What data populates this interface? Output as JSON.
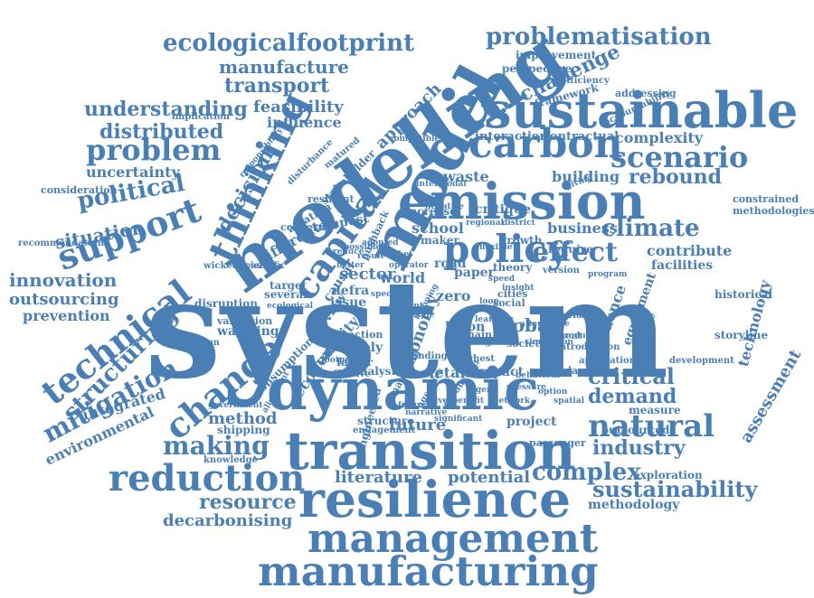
{
  "color": "#4a7fb5",
  "words": [
    "system",
    "energy",
    "modelling",
    "model",
    "sustainable",
    "emission",
    "dynamic",
    "transition",
    "resilience",
    "management",
    "manufacturing",
    "thinking",
    "capital",
    "carbon",
    "policy",
    "scenario",
    "technical",
    "support",
    "reduction",
    "change",
    "mitigation",
    "structuring",
    "problem",
    "political",
    "making",
    "natural",
    "demand",
    "critical",
    "industry",
    "complex",
    "sustainability",
    "climate",
    "effect",
    "rebound",
    "complexity",
    "challenge",
    "problematisation",
    "ecologicalfootprint",
    "manufacture",
    "transport",
    "understanding",
    "distributed",
    "feasibility",
    "influence",
    "approach",
    "decision",
    "innovation",
    "outsourcing",
    "prevention",
    "situation",
    "uncertainty",
    "resource",
    "decarbonising",
    "literature",
    "potential",
    "methodology",
    "technology",
    "assessment",
    "integrated",
    "environmental",
    "method",
    "future",
    "global",
    "sector",
    "building",
    "waste",
    "business",
    "contribute",
    "facilities",
    "framework",
    "perspective",
    "improvement",
    "consideration",
    "recommendation",
    "historical",
    "storyline",
    "constrained",
    "methodologies",
    "addressing",
    "implication",
    "different",
    "school",
    "critique",
    "interaction",
    "contractual",
    "stakeholder",
    "aviation",
    "tempest",
    "world",
    "road",
    "zero",
    "holon",
    "paper",
    "theory",
    "cities",
    "social",
    "society",
    "economy",
    "review",
    "validity",
    "supply",
    "factor",
    "analysis",
    "societal",
    "impact",
    "standard",
    "project",
    "passenger",
    "outsourced",
    "exploration",
    "measure",
    "structure",
    "engagement",
    "knowledge",
    "shipping",
    "government",
    "consumption",
    "warming",
    "validation",
    "disruption",
    "assumption",
    "target",
    "several",
    "scientific",
    "wickedness",
    "engineered",
    "economic",
    "causal",
    "defra",
    "issue",
    "evidence",
    "equipment",
    "availability",
    "development",
    "application",
    "require",
    "growth",
    "increase",
    "maker",
    "concern",
    "resilient",
    "disturbance",
    "efficiency",
    "introduction",
    "accountability",
    "responsibility",
    "compatible",
    "intermodal",
    "matured",
    "version",
    "material",
    "element",
    "chain",
    "range",
    "finding",
    "highest",
    "imagining",
    "agencies",
    "production",
    "significant",
    "narrative",
    "behaviour",
    "ecological",
    "introduction",
    "alignment",
    "footprint",
    "action",
    "effective",
    "program",
    "giving",
    "insight",
    "loop",
    "negative",
    "current",
    "mapping",
    "better",
    "district",
    "speed",
    "possible",
    "result",
    "adopted",
    "reduce",
    "market",
    "operator",
    "regional",
    "flexible",
    "simulation",
    "alternative",
    "specific",
    "pushback",
    "scale",
    "learning",
    "future",
    "drivers",
    "benefit",
    "agent",
    "network",
    "pressure",
    "option",
    "spatial"
  ]
}
